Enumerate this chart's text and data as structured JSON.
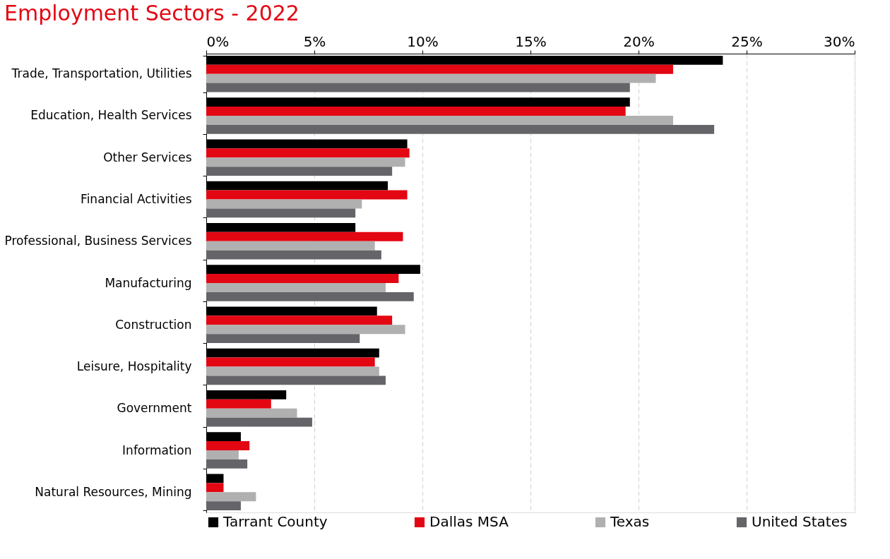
{
  "chart_data": {
    "type": "bar",
    "orientation": "horizontal",
    "title": "Employment Sectors - 2022",
    "categories": [
      "Trade, Transportation, Utilities",
      "Education, Health Services",
      "Other Services",
      "Financial Activities",
      "Professional, Business Services",
      "Manufacturing",
      "Construction",
      "Leisure, Hospitality",
      "Government",
      "Information",
      "Natural Resources, Mining"
    ],
    "series": [
      {
        "name": "Tarrant County",
        "color": "#000000",
        "values": [
          23.9,
          19.6,
          9.3,
          8.4,
          6.9,
          9.9,
          7.9,
          8.0,
          3.7,
          1.6,
          0.8
        ]
      },
      {
        "name": "Dallas MSA",
        "color": "#e30613",
        "values": [
          21.6,
          19.4,
          9.4,
          9.3,
          9.1,
          8.9,
          8.6,
          7.8,
          3.0,
          2.0,
          0.8
        ]
      },
      {
        "name": "Texas",
        "color": "#b0b0b0",
        "values": [
          20.8,
          21.6,
          9.2,
          7.2,
          7.8,
          8.3,
          9.2,
          8.0,
          4.2,
          1.5,
          2.3
        ]
      },
      {
        "name": "United States",
        "color": "#646469",
        "values": [
          19.6,
          23.5,
          8.6,
          6.9,
          8.1,
          9.6,
          7.1,
          8.3,
          4.9,
          1.9,
          1.6
        ]
      }
    ],
    "xlim": [
      0,
      30
    ],
    "xticks": [
      {
        "value": 0,
        "label": "0%"
      },
      {
        "value": 5,
        "label": "5%"
      },
      {
        "value": 10,
        "label": "10%"
      },
      {
        "value": 15,
        "label": "15%"
      },
      {
        "value": 20,
        "label": "20%"
      },
      {
        "value": 25,
        "label": "25%"
      },
      {
        "value": 30,
        "label": "30%"
      }
    ],
    "grid": "x",
    "legend": "bottom"
  }
}
